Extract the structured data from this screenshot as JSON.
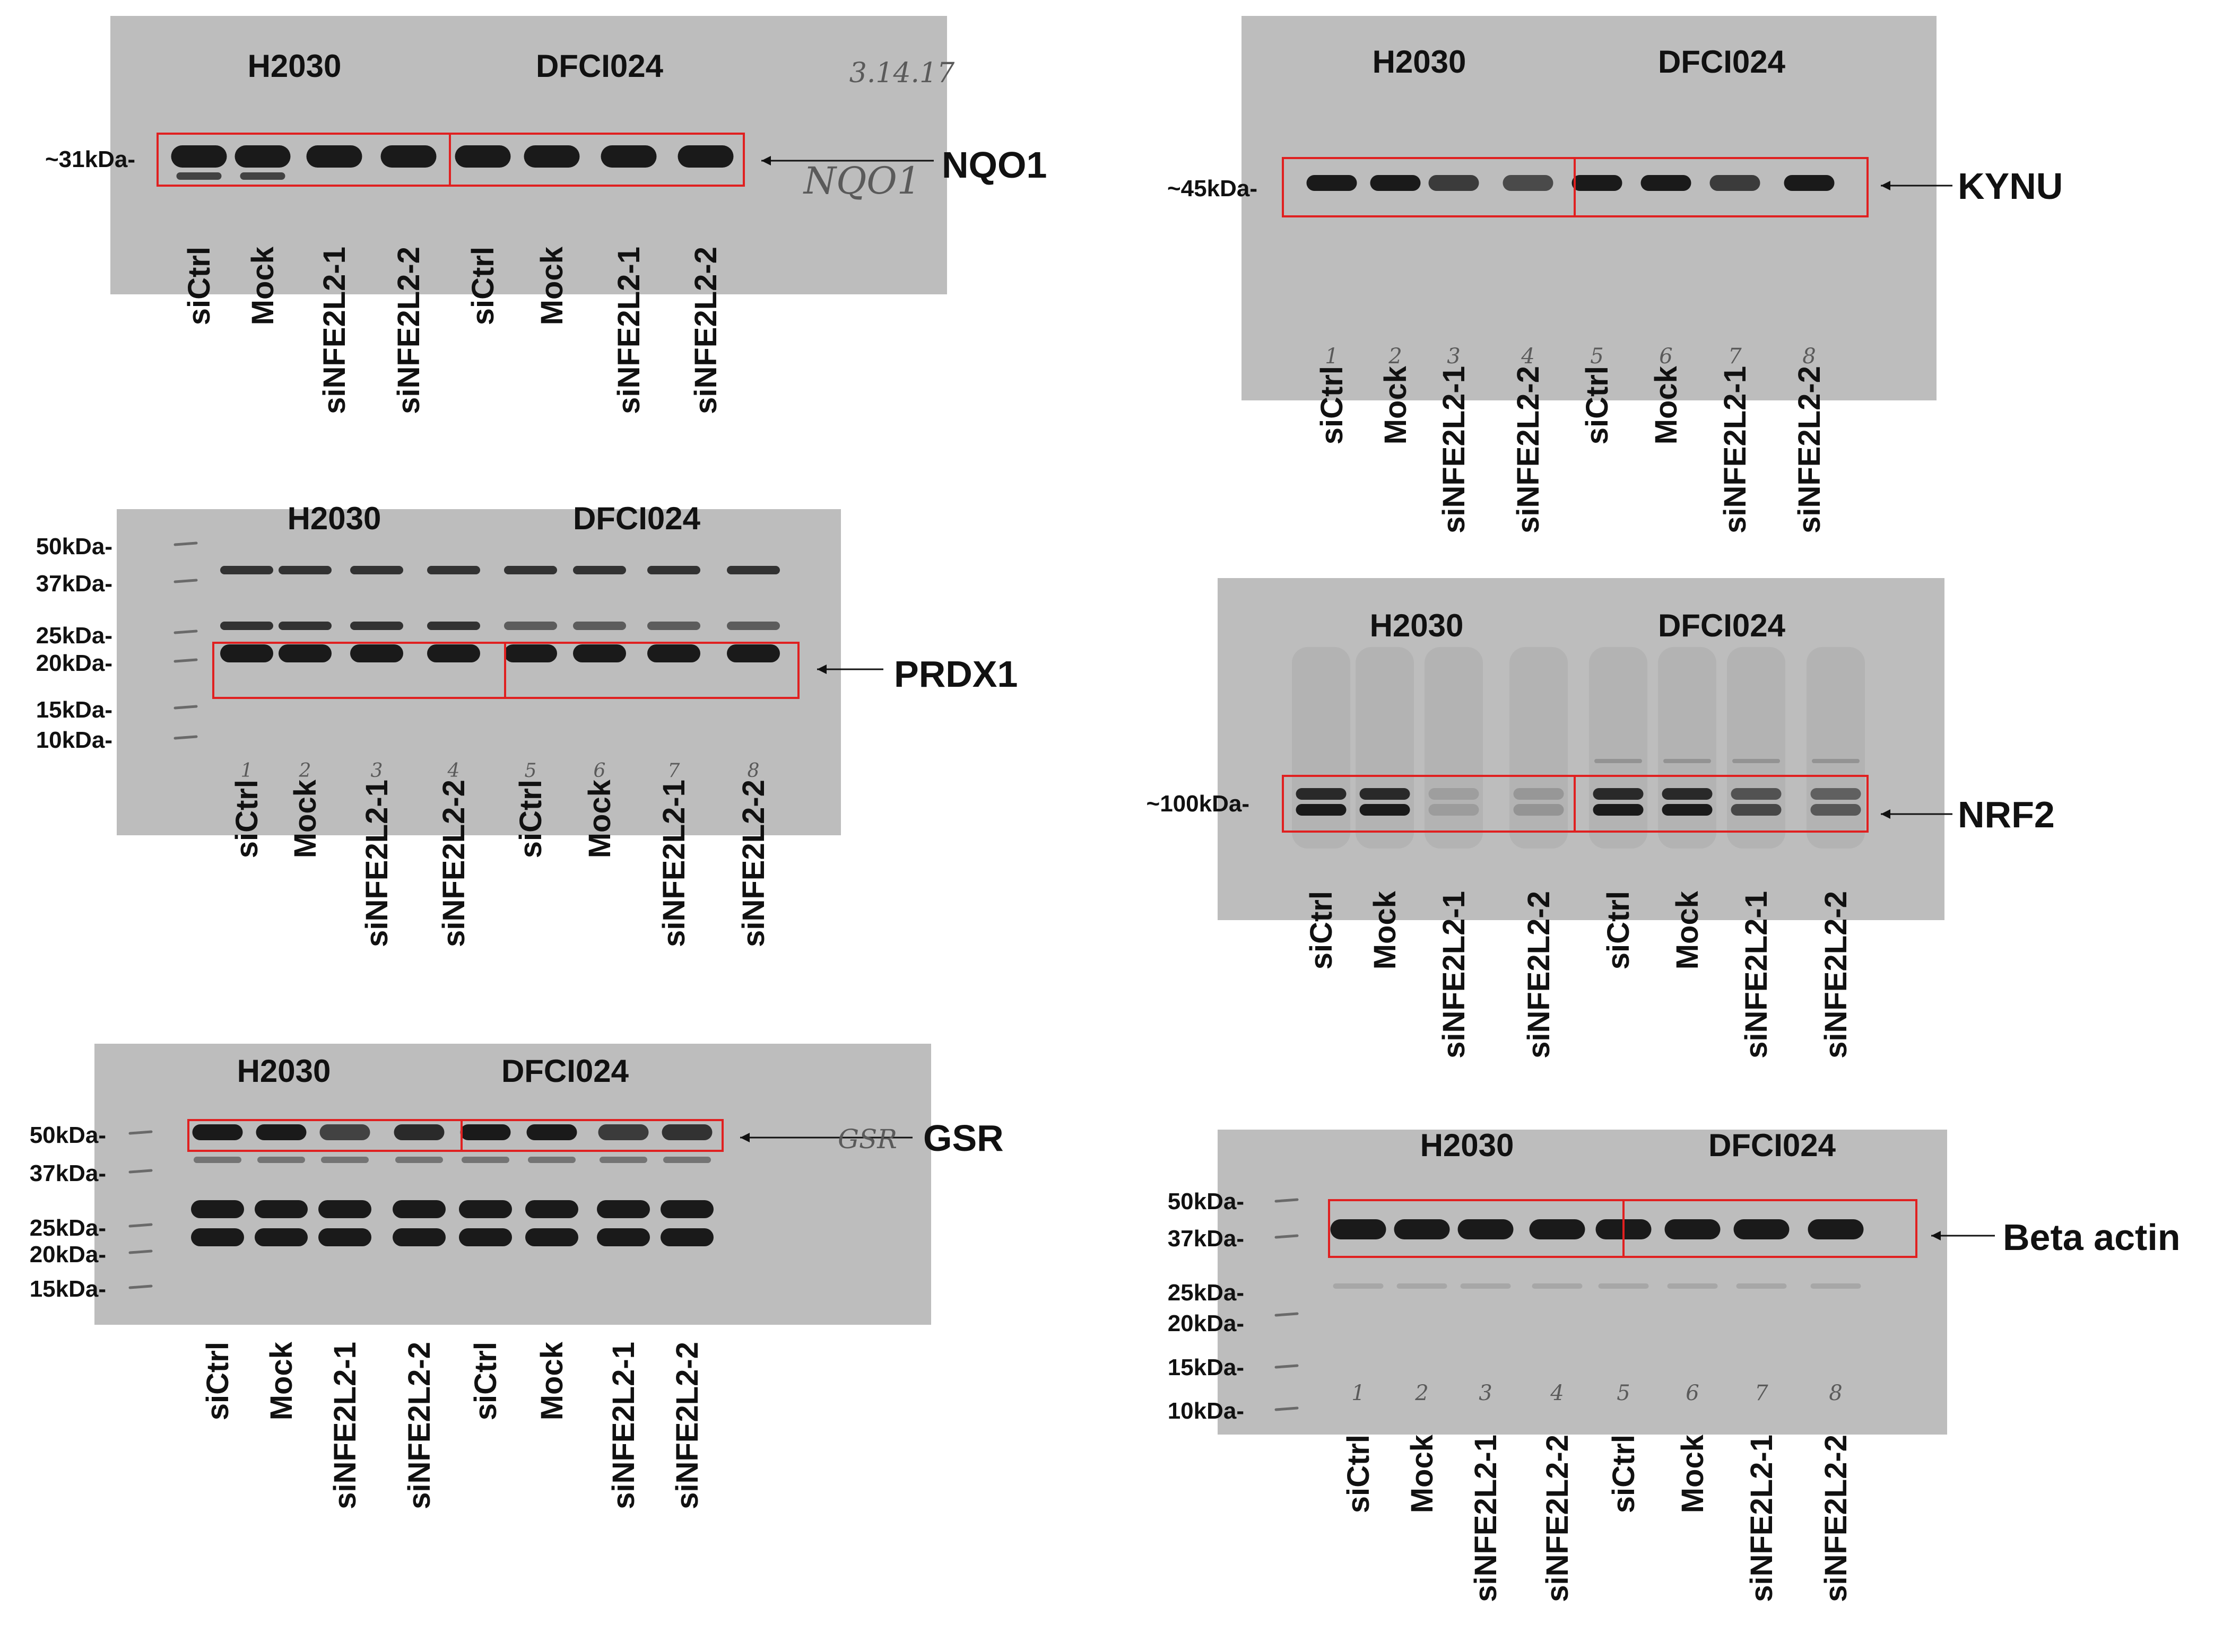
{
  "cell_lines": [
    "H2030",
    "DFCI024"
  ],
  "lanes": [
    "siCtrl",
    "Mock",
    "siNFE2L2-1",
    "siNFE2L2-2",
    "siCtrl",
    "Mock",
    "siNFE2L2-1",
    "siNFE2L2-2"
  ],
  "handwritten_lane_numbers": [
    "1",
    "2",
    "3",
    "4",
    "5",
    "6",
    "7",
    "8"
  ],
  "panels": {
    "nqo1": {
      "protein": "NQO1",
      "marker": "~31kDa-",
      "handwriting": [
        "3.14.17",
        "NQO1"
      ]
    },
    "kynu": {
      "protein": "KYNU",
      "marker": "~45kDa-"
    },
    "prdx1": {
      "protein": "PRDX1",
      "markers": [
        "50kDa-",
        "37kDa-",
        "25kDa-",
        "20kDa-",
        "15kDa-",
        "10kDa-"
      ]
    },
    "nrf2": {
      "protein": "NRF2",
      "marker": "~100kDa-"
    },
    "gsr": {
      "protein": "GSR",
      "markers": [
        "50kDa-",
        "37kDa-",
        "25kDa-",
        "20kDa-",
        "15kDa-"
      ],
      "handwriting": [
        "GSR"
      ]
    },
    "actin": {
      "protein": "Beta actin",
      "markers": [
        "50kDa-",
        "37kDa-",
        "25kDa-",
        "20kDa-",
        "15kDa-",
        "10kDa-"
      ]
    }
  }
}
